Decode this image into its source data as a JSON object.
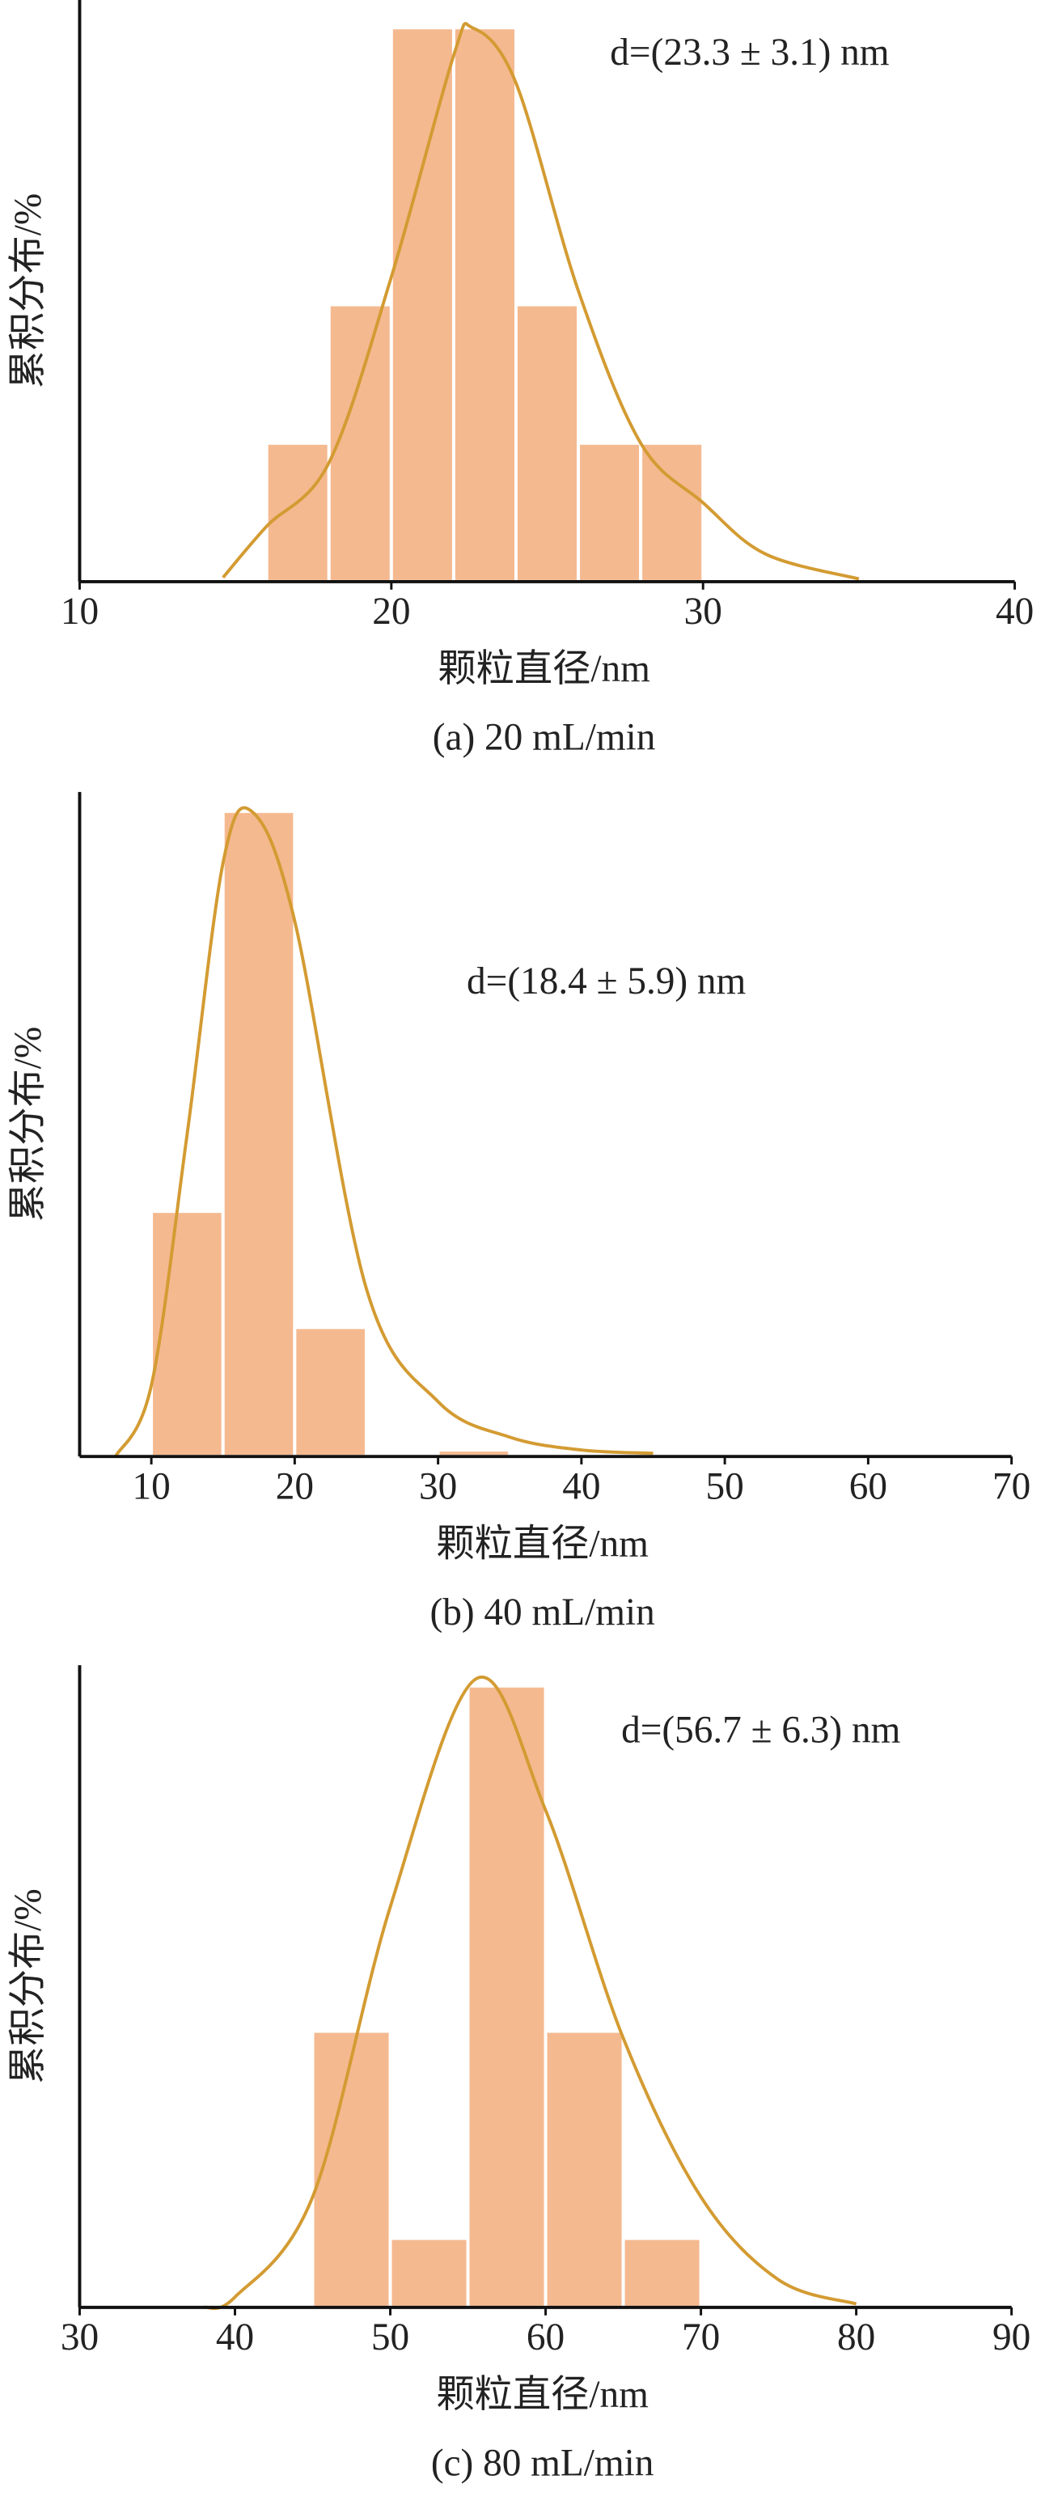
{
  "chart_data": [
    {
      "type": "histogram",
      "annotation": "d=(23.3 ± 3.1) nm",
      "y_label": "累积分布/%",
      "x_label": "颗粒直径/nm",
      "caption": "(a) 20 mL/min",
      "bins": [
        16,
        18,
        20,
        22,
        24,
        26,
        28,
        30
      ],
      "counts": [
        1,
        2,
        4,
        4,
        2,
        1,
        1
      ],
      "color": "#f5b990",
      "curve": {
        "color": "#d39b32",
        "x": [
          14.6,
          16,
          18,
          20,
          22,
          22.6,
          24,
          26,
          28,
          30,
          32,
          35
        ],
        "y": [
          0.03,
          0.4,
          0.86,
          2.2,
          3.8,
          4.0,
          3.6,
          2.1,
          1.0,
          0.57,
          0.2,
          0.02
        ]
      },
      "xlim": [
        10,
        40
      ],
      "xticks": [
        10,
        20,
        30,
        40
      ],
      "ylim": [
        0,
        4.2
      ]
    },
    {
      "type": "histogram",
      "annotation": "d=(18.4 ± 5.9) nm",
      "y_label": "累积分布/%",
      "x_label": "颗粒直径/nm",
      "caption": "(b) 40 mL/min",
      "bins": [
        10,
        15,
        20,
        25,
        30,
        35,
        40,
        45,
        50,
        55
      ],
      "counts": [
        38,
        100,
        20,
        0.5,
        1,
        0.5,
        0.5,
        0.5,
        0.5
      ],
      "color": "#f5b990",
      "curve": {
        "color": "#d39b32",
        "x": [
          7.5,
          10,
          12.5,
          15,
          17,
          20,
          25,
          30,
          35,
          40,
          45
        ],
        "y": [
          0,
          11,
          50,
          92,
          100,
          83,
          26,
          8.5,
          3,
          1,
          0.5
        ]
      },
      "xlim": [
        5,
        70
      ],
      "xticks": [
        10,
        20,
        30,
        40,
        50,
        60,
        70
      ],
      "ylim": [
        0,
        103
      ]
    },
    {
      "type": "histogram",
      "annotation": "d=(56.7 ± 6.3) nm",
      "y_label": "累积分布/%",
      "x_label": "颗粒直径/nm",
      "caption": "(c) 80 mL/min",
      "bins": [
        45,
        50,
        55,
        60,
        65,
        70
      ],
      "counts": [
        4,
        1,
        9,
        4,
        1
      ],
      "color": "#f5b990",
      "curve": {
        "color": "#d39b32",
        "x": [
          38,
          40,
          45,
          50,
          55.5,
          60,
          65,
          70,
          75,
          80
        ],
        "y": [
          0,
          0.15,
          1.6,
          5.8,
          9.1,
          7.2,
          3.9,
          1.6,
          0.4,
          0.05
        ]
      },
      "xlim": [
        30,
        90
      ],
      "xticks": [
        30,
        40,
        50,
        60,
        70,
        80,
        90
      ],
      "ylim": [
        0,
        9.3
      ]
    }
  ]
}
